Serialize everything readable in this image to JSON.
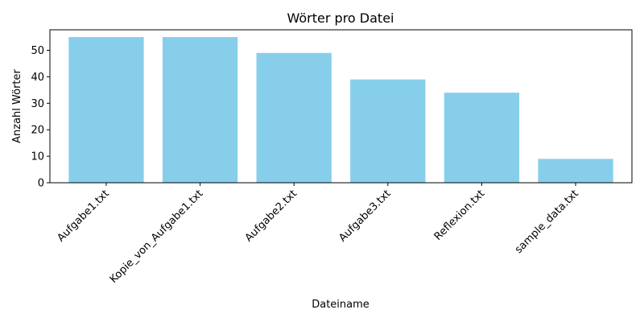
{
  "chart_data": {
    "type": "bar",
    "title": "Wörter pro Datei",
    "xlabel": "Dateiname",
    "ylabel": "Anzahl Wörter",
    "categories": [
      "Aufgabe1.txt",
      "Kopie_von_Aufgabe1.txt",
      "Aufgabe2.txt",
      "Aufgabe3.txt",
      "Reflexion.txt",
      "sample_data.txt"
    ],
    "values": [
      55,
      55,
      49,
      39,
      34,
      9
    ],
    "ylim": [
      0,
      57.75
    ],
    "yticks": [
      0,
      10,
      20,
      30,
      40,
      50
    ],
    "bar_color": "#87ceeb",
    "grid": false,
    "legend": "none"
  }
}
